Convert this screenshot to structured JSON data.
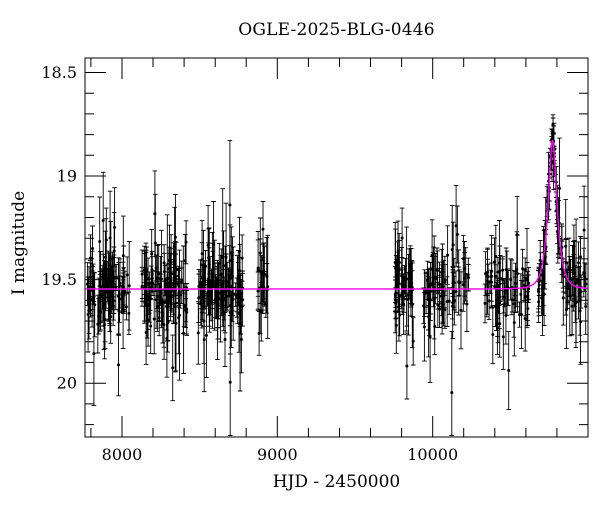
{
  "figure": {
    "background": "#ffffff"
  },
  "chart_data": {
    "type": "scatter",
    "title": "OGLE-2025-BLG-0446",
    "xlabel": "HJD - 2450000",
    "ylabel": "I magnitude",
    "legend": "none",
    "grid": false,
    "x_axis": {
      "min": 7762,
      "max": 11000,
      "major_ticks": [
        8000,
        9000,
        10000
      ],
      "tick_labels": [
        "8000",
        "9000",
        "10000"
      ],
      "minor_tick_step": 200
    },
    "y_axis": {
      "min": 18.43,
      "max": 20.26,
      "inverted": true,
      "major_ticks": [
        18.5,
        19,
        19.5,
        20
      ],
      "tick_labels": [
        "18.5",
        "19",
        "19.5",
        "20"
      ],
      "minor_tick_step": 0.1
    },
    "style": {
      "point_color": "#000000",
      "model_color": "#ff00ff",
      "axis_color": "#000000",
      "background": "#ffffff"
    },
    "model": {
      "kind": "paczynski_microlensing",
      "t0": 10772,
      "tE": 45,
      "u0": 0.58,
      "baseline_mag": 19.545,
      "peak_mag": 18.83
    },
    "observing_seasons": [
      {
        "t_start": 7775,
        "t_end": 8051,
        "n": 92
      },
      {
        "t_start": 8129,
        "t_end": 8418,
        "n": 112
      },
      {
        "t_start": 8489,
        "t_end": 8779,
        "n": 108
      },
      {
        "t_start": 8869,
        "t_end": 8940,
        "n": 22
      },
      {
        "t_start": 9758,
        "t_end": 9880,
        "n": 44
      },
      {
        "t_start": 9938,
        "t_end": 10241,
        "n": 70
      },
      {
        "t_start": 10337,
        "t_end": 10627,
        "n": 68
      },
      {
        "t_start": 10679,
        "t_end": 10994,
        "n": 95
      }
    ],
    "extra_peak_points": {
      "t_start": 10756,
      "t_end": 10790,
      "n": 14
    },
    "scatter": {
      "err_base": 0.055,
      "err_spread": 0.075,
      "outlier_prob": 0.07,
      "outlier_extra": 0.17,
      "err_min": 0.035,
      "err_max": 0.45,
      "noise_factor": 0.85,
      "mag_min": 18.7,
      "mag_max": 20.06
    },
    "seed": 11
  }
}
